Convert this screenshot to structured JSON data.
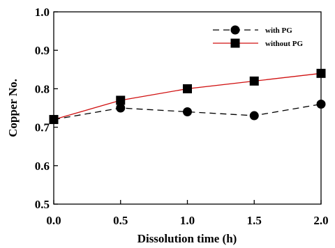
{
  "chart_data": {
    "type": "line",
    "xlabel": "Dissolution time (h)",
    "ylabel": "Copper No.",
    "xlim": [
      0.0,
      2.0
    ],
    "ylim": [
      0.5,
      1.0
    ],
    "x_ticks": [
      "0.0",
      "0.5",
      "1.0",
      "1.5",
      "2.0"
    ],
    "y_ticks": [
      "0.5",
      "0.6",
      "0.7",
      "0.8",
      "0.9",
      "1.0"
    ],
    "grid": false,
    "legend_position": "top-right",
    "series": [
      {
        "name": "with  PG",
        "x": [
          0.0,
          0.5,
          1.0,
          1.5,
          2.0
        ],
        "y": [
          0.72,
          0.75,
          0.74,
          0.73,
          0.76
        ],
        "color": "#000000",
        "line_style": "dashed",
        "marker": "circle"
      },
      {
        "name": "without PG",
        "x": [
          0.0,
          0.5,
          1.0,
          1.5,
          2.0
        ],
        "y": [
          0.72,
          0.77,
          0.8,
          0.82,
          0.84
        ],
        "color": "#d01010",
        "line_style": "solid",
        "marker": "square"
      }
    ]
  }
}
